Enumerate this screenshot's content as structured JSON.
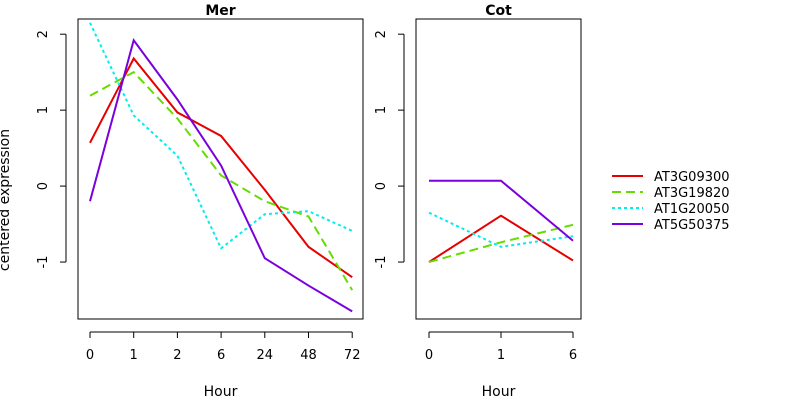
{
  "chart_data": {
    "type": "line",
    "ylabel": "centered expression",
    "legend": {
      "placement": "right",
      "entries": [
        "AT3G09300",
        "AT3G19820",
        "AT1G20050",
        "AT5G50375"
      ]
    },
    "series_styles": [
      {
        "name": "AT3G09300",
        "color": "#e60000",
        "dash": "solid"
      },
      {
        "name": "AT3G19820",
        "color": "#66dd00",
        "dash": "dashed"
      },
      {
        "name": "AT1G20050",
        "color": "#00eeee",
        "dash": "dotted"
      },
      {
        "name": "AT5G50375",
        "color": "#7a00dd",
        "dash": "solid"
      }
    ],
    "panels": [
      {
        "title": "Mer",
        "xlabel": "Hour",
        "categories": [
          "0",
          "1",
          "2",
          "6",
          "24",
          "48",
          "72"
        ],
        "ylim": [
          -1.75,
          2.2
        ],
        "yticks": [
          -1,
          0,
          1,
          2
        ],
        "series": [
          {
            "name": "AT3G09300",
            "values": [
              0.57,
              1.68,
              0.97,
              0.66,
              -0.05,
              -0.8,
              -1.2
            ]
          },
          {
            "name": "AT3G19820",
            "values": [
              1.19,
              1.5,
              0.89,
              0.14,
              -0.2,
              -0.4,
              -1.37
            ]
          },
          {
            "name": "AT1G20050",
            "values": [
              2.15,
              0.93,
              0.4,
              -0.82,
              -0.37,
              -0.33,
              -0.59
            ]
          },
          {
            "name": "AT5G50375",
            "values": [
              -0.2,
              1.92,
              1.14,
              0.27,
              -0.95,
              -1.31,
              -1.65
            ]
          }
        ]
      },
      {
        "title": "Cot",
        "xlabel": "Hour",
        "categories": [
          "0",
          "1",
          "6"
        ],
        "ylim": [
          -1.75,
          2.2
        ],
        "yticks": [
          -1,
          0,
          1,
          2
        ],
        "series": [
          {
            "name": "AT3G09300",
            "values": [
              -1.0,
              -0.39,
              -0.98
            ]
          },
          {
            "name": "AT3G19820",
            "values": [
              -1.0,
              -0.74,
              -0.51
            ]
          },
          {
            "name": "AT1G20050",
            "values": [
              -0.35,
              -0.8,
              -0.66
            ]
          },
          {
            "name": "AT5G50375",
            "values": [
              0.07,
              0.07,
              -0.72
            ]
          }
        ]
      }
    ]
  }
}
